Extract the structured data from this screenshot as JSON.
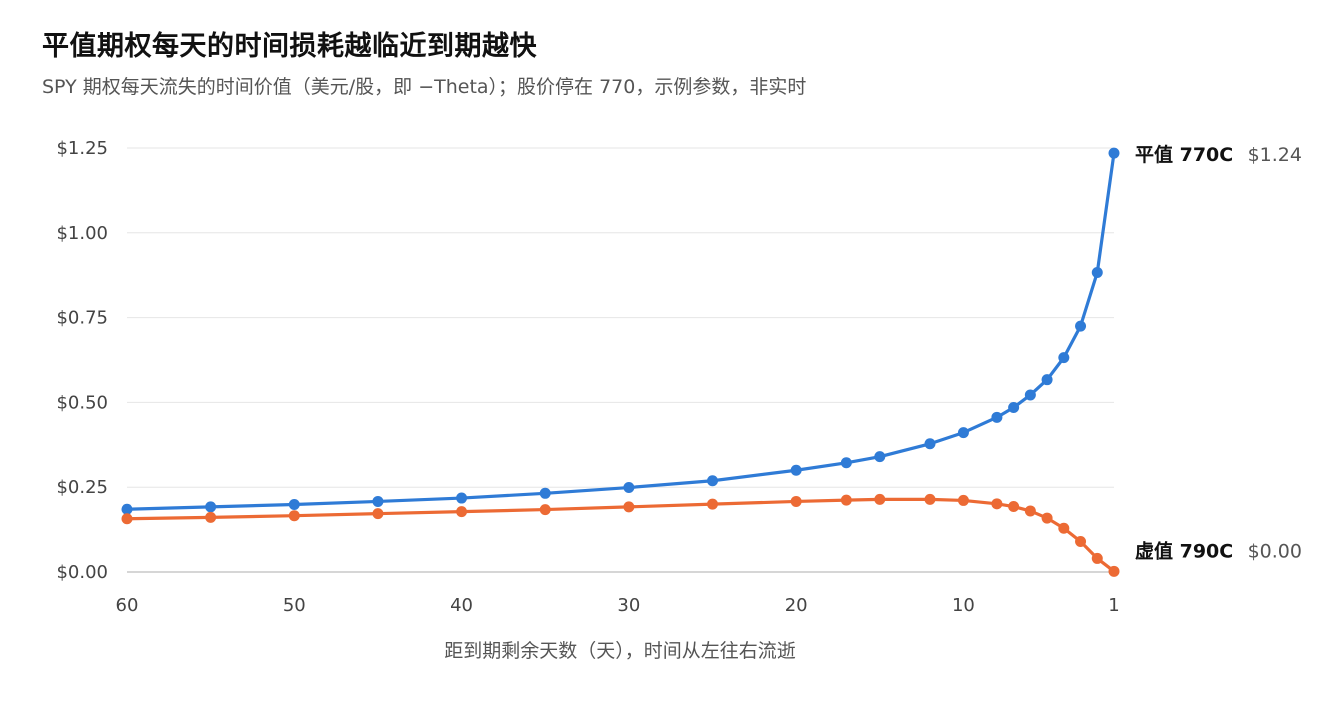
{
  "header": {
    "title": "平值期权每天的时间损耗越临近到期越快",
    "subtitle": "SPY 期权每天流失的时间价值（美元/股，即 −Theta）；股价停在 770，示例参数，非实时"
  },
  "chart_data": {
    "type": "line",
    "title": "平值期权每天的时间损耗越临近到期越快",
    "subtitle": "SPY 期权每天流失的时间价值（美元/股，即 −Theta）；股价停在 770，示例参数，非实时",
    "xlabel": "距到期剩余天数（天），时间从左往右流逝",
    "ylabel": "",
    "xlim": [
      60,
      1
    ],
    "ylim": [
      0,
      1.25
    ],
    "x_ticks": [
      60,
      50,
      40,
      30,
      20,
      10,
      1
    ],
    "y_ticks": [
      0,
      0.25,
      0.5,
      0.75,
      1.0,
      1.25
    ],
    "y_tick_labels": [
      "$0.00",
      "$0.25",
      "$0.50",
      "$0.75",
      "$1.00",
      "$1.25"
    ],
    "grid": "horizontal",
    "legend": "direct labels at right end",
    "series": [
      {
        "name": "平值 770C",
        "end_label": "$1.24",
        "color": "#2f7bd6",
        "x": [
          60,
          55,
          50,
          45,
          40,
          35,
          30,
          25,
          20,
          17,
          15,
          12,
          10,
          8,
          7,
          6,
          5,
          4,
          3,
          2,
          1
        ],
        "values": [
          0.185,
          0.192,
          0.199,
          0.208,
          0.218,
          0.232,
          0.249,
          0.269,
          0.3,
          0.322,
          0.34,
          0.378,
          0.411,
          0.456,
          0.485,
          0.522,
          0.567,
          0.632,
          0.725,
          0.883,
          1.235
        ]
      },
      {
        "name": "虚值 790C",
        "end_label": "$0.00",
        "color": "#ec6a34",
        "x": [
          60,
          55,
          50,
          45,
          40,
          35,
          30,
          25,
          20,
          17,
          15,
          12,
          10,
          8,
          7,
          6,
          5,
          4,
          3,
          2,
          1
        ],
        "values": [
          0.157,
          0.161,
          0.166,
          0.172,
          0.178,
          0.184,
          0.192,
          0.2,
          0.208,
          0.212,
          0.214,
          0.214,
          0.211,
          0.201,
          0.193,
          0.18,
          0.159,
          0.129,
          0.09,
          0.04,
          0.002
        ]
      }
    ]
  }
}
